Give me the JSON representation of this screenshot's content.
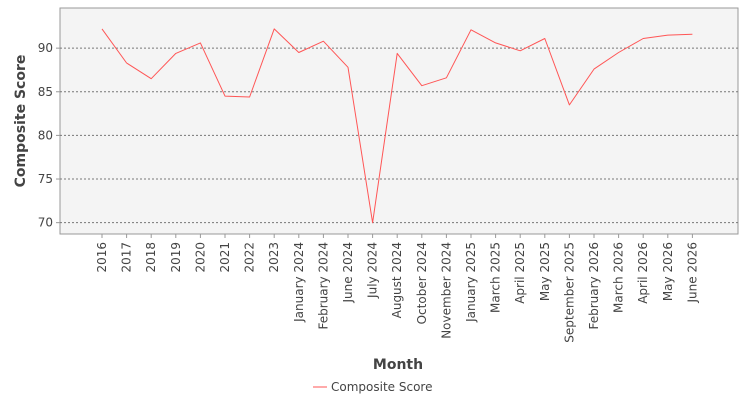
{
  "chart_data": {
    "type": "line",
    "title": "",
    "xlabel": "Month",
    "ylabel": "Composite Score",
    "categories": [
      "2016",
      "2017",
      "2018",
      "2019",
      "2020",
      "2021",
      "2022",
      "2023",
      "January 2024",
      "February 2024",
      "June 2024",
      "July 2024",
      "August 2024",
      "October 2024",
      "November 2024",
      "January 2025",
      "March 2025",
      "April 2025",
      "May 2025",
      "September 2025",
      "February 2026",
      "March 2026",
      "April 2026",
      "May 2026",
      "June 2026"
    ],
    "series": [
      {
        "name": "Composite Score",
        "color": "#ff5555",
        "values": [
          92.2,
          88.3,
          86.5,
          89.4,
          90.6,
          84.5,
          84.4,
          92.2,
          89.5,
          90.8,
          87.8,
          70.0,
          89.4,
          85.7,
          86.6,
          92.1,
          90.6,
          89.7,
          91.1,
          83.5,
          87.6,
          89.5,
          91.1,
          91.5,
          91.6
        ]
      }
    ],
    "ylim": [
      68.7,
      94.6
    ],
    "yticks": [
      70,
      75,
      80,
      85,
      90
    ],
    "grid": true,
    "legend": "bottom-center",
    "plot_background": "#f4f4f4",
    "grid_color": "#777777"
  }
}
